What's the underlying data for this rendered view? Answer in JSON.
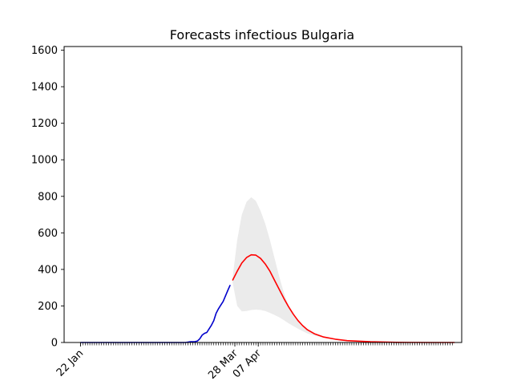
{
  "chart_data": {
    "type": "line",
    "title": "Forecasts infectious Bulgaria",
    "xlabel": "",
    "ylabel": "",
    "ylim": [
      0,
      1620
    ],
    "y_ticks": [
      0,
      200,
      400,
      600,
      800,
      1000,
      1200,
      1400,
      1600
    ],
    "x_range": [
      "2020-01-15",
      "2020-07-03"
    ],
    "x_tick_labels": [
      {
        "date": "2020-01-22",
        "label": "22 Jan"
      },
      {
        "date": "2020-03-28",
        "label": "28 Mar"
      },
      {
        "date": "2020-04-07",
        "label": "07 Apr"
      }
    ],
    "minor_ticks": "daily",
    "grid": false,
    "series": [
      {
        "role": "observed",
        "color": "#0000cc",
        "points": [
          [
            "2020-01-22",
            0
          ],
          [
            "2020-02-15",
            0
          ],
          [
            "2020-03-07",
            0
          ],
          [
            "2020-03-08",
            2
          ],
          [
            "2020-03-09",
            4
          ],
          [
            "2020-03-10",
            4
          ],
          [
            "2020-03-11",
            5
          ],
          [
            "2020-03-12",
            8
          ],
          [
            "2020-03-13",
            20
          ],
          [
            "2020-03-14",
            40
          ],
          [
            "2020-03-15",
            50
          ],
          [
            "2020-03-16",
            55
          ],
          [
            "2020-03-17",
            75
          ],
          [
            "2020-03-18",
            95
          ],
          [
            "2020-03-19",
            120
          ],
          [
            "2020-03-20",
            160
          ],
          [
            "2020-03-21",
            185
          ],
          [
            "2020-03-22",
            205
          ],
          [
            "2020-03-23",
            225
          ],
          [
            "2020-03-24",
            255
          ],
          [
            "2020-03-25",
            285
          ],
          [
            "2020-03-26",
            315
          ]
        ]
      },
      {
        "role": "forecast",
        "color": "#ff0000",
        "points": [
          [
            "2020-03-27",
            340
          ],
          [
            "2020-03-29",
            390
          ],
          [
            "2020-03-31",
            435
          ],
          [
            "2020-04-02",
            465
          ],
          [
            "2020-04-04",
            480
          ],
          [
            "2020-04-06",
            478
          ],
          [
            "2020-04-08",
            460
          ],
          [
            "2020-04-10",
            430
          ],
          [
            "2020-04-12",
            390
          ],
          [
            "2020-04-14",
            340
          ],
          [
            "2020-04-16",
            290
          ],
          [
            "2020-04-18",
            240
          ],
          [
            "2020-04-20",
            195
          ],
          [
            "2020-04-22",
            155
          ],
          [
            "2020-04-24",
            120
          ],
          [
            "2020-04-26",
            92
          ],
          [
            "2020-04-28",
            70
          ],
          [
            "2020-05-01",
            48
          ],
          [
            "2020-05-05",
            30
          ],
          [
            "2020-05-10",
            18
          ],
          [
            "2020-05-15",
            10
          ],
          [
            "2020-05-25",
            4
          ],
          [
            "2020-06-05",
            1
          ],
          [
            "2020-06-20",
            0
          ],
          [
            "2020-06-30",
            0
          ]
        ]
      }
    ],
    "band": {
      "color": "#ebebeb",
      "upper": [
        [
          "2020-03-27",
          350
        ],
        [
          "2020-03-29",
          560
        ],
        [
          "2020-03-31",
          700
        ],
        [
          "2020-04-02",
          770
        ],
        [
          "2020-04-04",
          795
        ],
        [
          "2020-04-06",
          775
        ],
        [
          "2020-04-08",
          720
        ],
        [
          "2020-04-10",
          650
        ],
        [
          "2020-04-12",
          560
        ],
        [
          "2020-04-14",
          460
        ],
        [
          "2020-04-16",
          360
        ],
        [
          "2020-04-18",
          270
        ],
        [
          "2020-04-20",
          200
        ],
        [
          "2020-04-22",
          150
        ],
        [
          "2020-04-24",
          115
        ],
        [
          "2020-04-26",
          88
        ],
        [
          "2020-04-28",
          68
        ],
        [
          "2020-05-01",
          47
        ],
        [
          "2020-05-05",
          30
        ],
        [
          "2020-05-10",
          18
        ],
        [
          "2020-05-15",
          10
        ],
        [
          "2020-05-25",
          4
        ],
        [
          "2020-06-05",
          1
        ],
        [
          "2020-06-20",
          0
        ],
        [
          "2020-06-30",
          0
        ]
      ],
      "lower": [
        [
          "2020-03-27",
          330
        ],
        [
          "2020-03-29",
          200
        ],
        [
          "2020-03-31",
          170
        ],
        [
          "2020-04-02",
          172
        ],
        [
          "2020-04-04",
          178
        ],
        [
          "2020-04-06",
          180
        ],
        [
          "2020-04-08",
          178
        ],
        [
          "2020-04-10",
          172
        ],
        [
          "2020-04-12",
          162
        ],
        [
          "2020-04-14",
          150
        ],
        [
          "2020-04-16",
          138
        ],
        [
          "2020-04-18",
          122
        ],
        [
          "2020-04-20",
          105
        ],
        [
          "2020-04-22",
          90
        ],
        [
          "2020-04-24",
          75
        ],
        [
          "2020-04-26",
          62
        ],
        [
          "2020-04-28",
          50
        ],
        [
          "2020-05-01",
          38
        ],
        [
          "2020-05-05",
          25
        ],
        [
          "2020-05-10",
          15
        ],
        [
          "2020-05-15",
          9
        ],
        [
          "2020-05-25",
          3
        ],
        [
          "2020-06-05",
          1
        ],
        [
          "2020-06-20",
          0
        ],
        [
          "2020-06-30",
          0
        ]
      ]
    }
  }
}
